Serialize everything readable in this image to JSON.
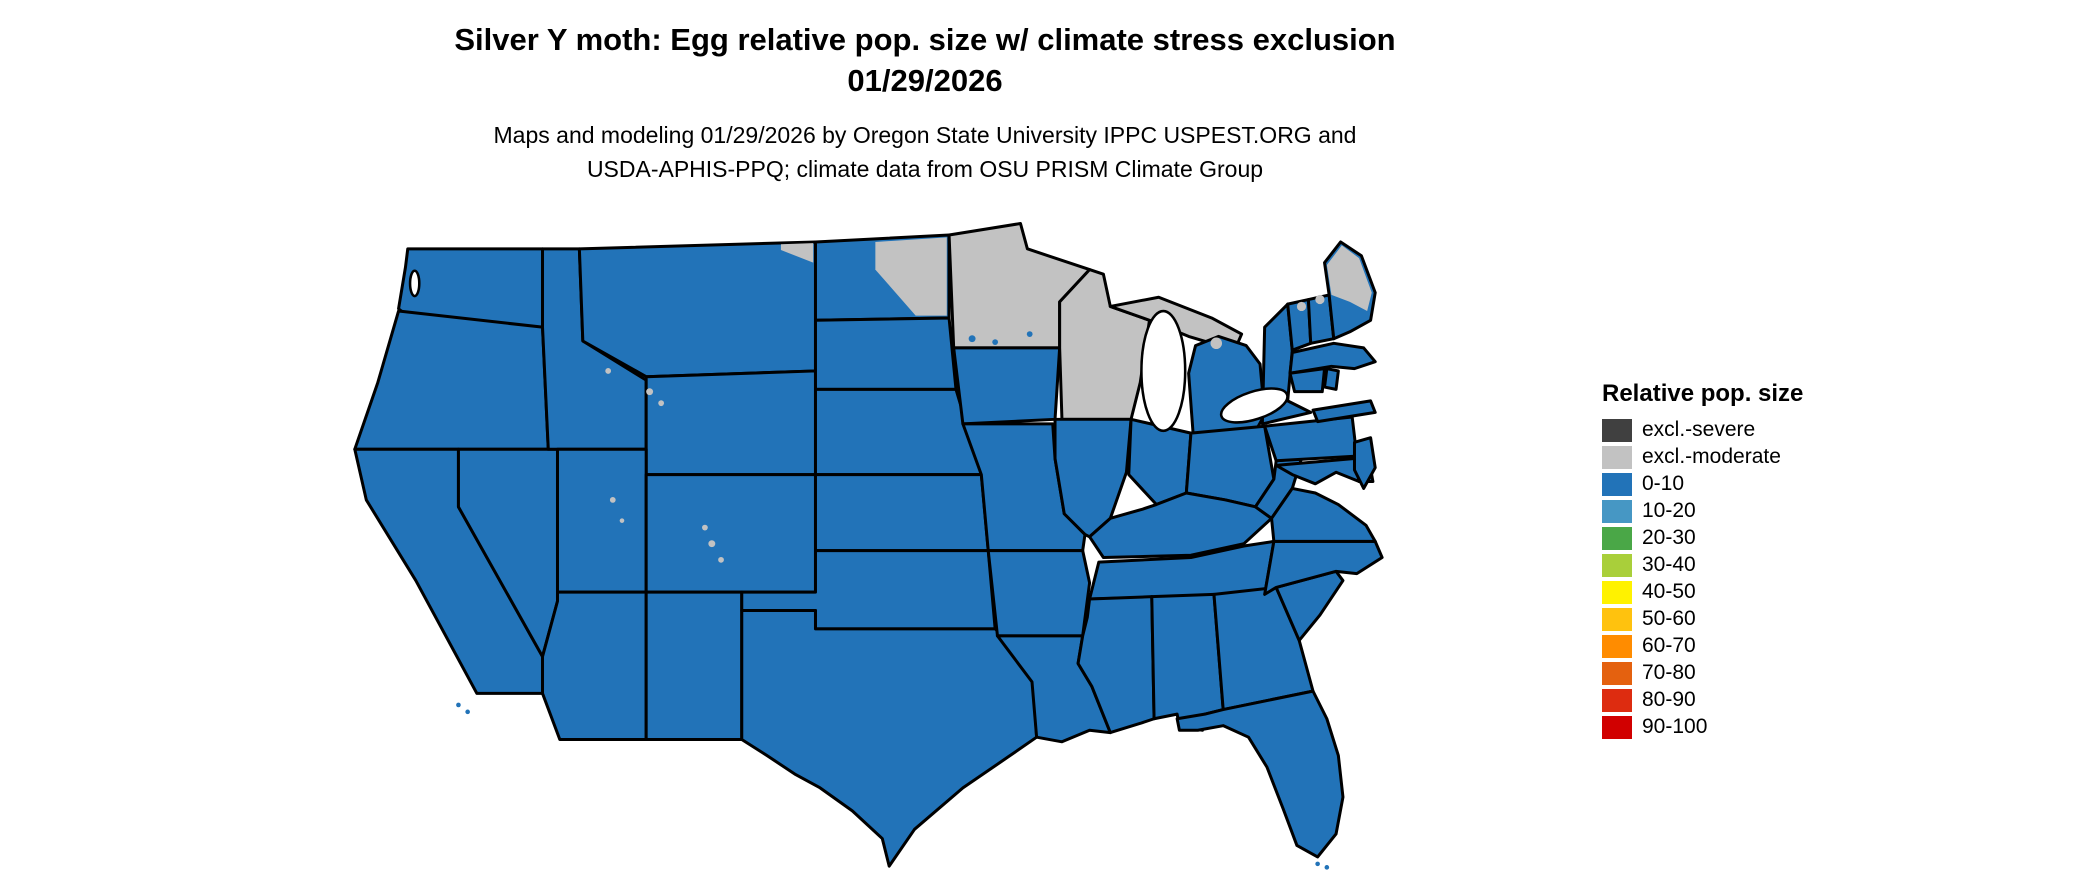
{
  "header": {
    "title_line1": "Silver Y moth: Egg relative pop. size w/ climate stress exclusion",
    "title_line2": "01/29/2026",
    "subtitle_line1": "Maps and modeling 01/29/2026 by Oregon State University IPPC USPEST.ORG and",
    "subtitle_line2": "USDA-APHIS-PPQ; climate data from OSU PRISM Climate Group"
  },
  "legend": {
    "title": "Relative pop. size",
    "items": [
      {
        "label": "excl.-severe",
        "color": "#404040"
      },
      {
        "label": "excl.-moderate",
        "color": "#c2c2c2"
      },
      {
        "label": "0-10",
        "color": "#2273b8"
      },
      {
        "label": "10-20",
        "color": "#4697c4"
      },
      {
        "label": "20-30",
        "color": "#4aa747"
      },
      {
        "label": "30-40",
        "color": "#a9cf3a"
      },
      {
        "label": "40-50",
        "color": "#fff200"
      },
      {
        "label": "50-60",
        "color": "#ffc20e"
      },
      {
        "label": "60-70",
        "color": "#ff8c00"
      },
      {
        "label": "70-80",
        "color": "#e4610f"
      },
      {
        "label": "80-90",
        "color": "#dd2c10"
      },
      {
        "label": "90-100",
        "color": "#d10000"
      }
    ]
  },
  "map": {
    "region": "contiguous United States",
    "dominant_class": "0-10",
    "excluded_moderate_areas": "Minnesota, Wisconsin, upper Michigan, northeastern North Dakota, northern Maine, small patches in northern Vermont/New Hampshire and Rocky Mountain high country",
    "colors": {
      "base_fill": "#2273b8",
      "exclusion_fill": "#c2c2c2",
      "border": "#000000",
      "water": "#ffffff"
    }
  }
}
